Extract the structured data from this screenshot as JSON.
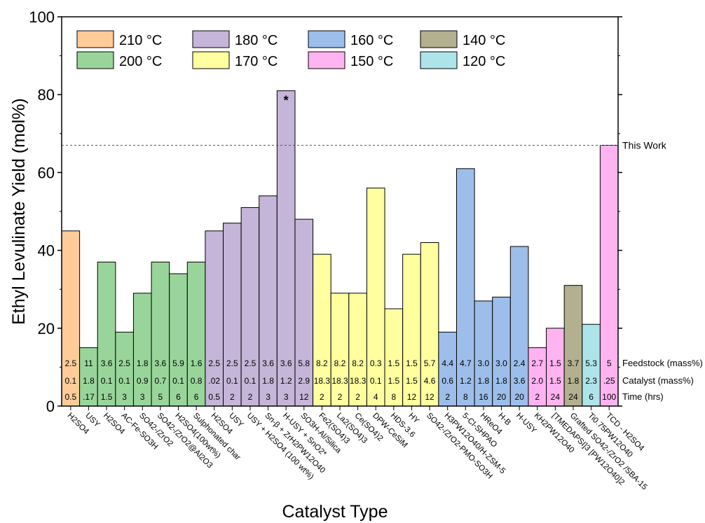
{
  "chart_data": {
    "type": "bar",
    "xlabel": "Catalyst Type",
    "ylabel": "Ethyl Levulinate Yield (mol%)",
    "ylim": [
      0,
      100
    ],
    "yticks": [
      0,
      20,
      40,
      60,
      80,
      100
    ],
    "grid": false,
    "legend_position": "top-left",
    "legend": [
      {
        "label": "210 °C",
        "color": "#FFCC99"
      },
      {
        "label": "180 °C",
        "color": "#C5B5D8"
      },
      {
        "label": "160 °C",
        "color": "#9DBEEA"
      },
      {
        "label": "140 °C",
        "color": "#B2B08E"
      },
      {
        "label": "200 °C",
        "color": "#99D59A"
      },
      {
        "label": "170 °C",
        "color": "#FFFFA0"
      },
      {
        "label": "150 °C",
        "color": "#FFB3F0"
      },
      {
        "label": "120 °C",
        "color": "#ADE4EA"
      }
    ],
    "reference_line": {
      "value": 67,
      "label": "This Work"
    },
    "row_labels": [
      "Feedstock (mass%)",
      "Catalyst (mass%)",
      "Time (hrs)"
    ],
    "annotation": {
      "text": "*",
      "bar_index": 12
    },
    "categories": [
      "H2SO4",
      "USY",
      "H2SO4",
      "AC-Fe-SO3H",
      "SO42-/ZrO2",
      "SO42-/ZrO2@Al2O3",
      "H2SO4(100wt%)",
      "Sulphonated char",
      "H2SO4",
      "USY",
      "USY + H2SO4 (100 wt%)",
      "Sn-β + ZrH2PW12O40",
      "H-USY + SnO2*",
      "SO3H-Al/Silica",
      "Fe2(SO4)3",
      "La2(SO4)3",
      "Ce(SO4)2",
      "DPW-CeSiM",
      "HDS-3.6",
      "HY",
      "SO42-/ZrO2-PMO-SO3H",
      "H3PW12O40/H-ZSM-5",
      "5-Cl-SHPAO",
      "HReO4",
      "H-B",
      "H-USY",
      "KH2PW12O40",
      "[TMEDAPSI]3 [PW12O40]2",
      "Grafted SO42-/ZrO2 /SBA-15",
      "Ti0.75PW12O40",
      "TCD - H2SO4"
    ],
    "values": [
      45,
      15,
      37,
      19,
      29,
      37,
      34,
      37,
      45,
      47,
      51,
      54,
      81,
      48,
      39,
      29,
      29,
      56,
      25,
      39,
      42,
      19,
      61,
      27,
      28,
      41,
      15,
      20,
      31,
      21,
      67
    ],
    "temperature": [
      "210 °C",
      "200 °C",
      "200 °C",
      "200 °C",
      "200 °C",
      "200 °C",
      "200 °C",
      "200 °C",
      "180 °C",
      "180 °C",
      "180 °C",
      "180 °C",
      "180 °C",
      "180 °C",
      "170 °C",
      "170 °C",
      "170 °C",
      "170 °C",
      "170 °C",
      "170 °C",
      "170 °C",
      "160 °C",
      "160 °C",
      "160 °C",
      "160 °C",
      "160 °C",
      "150 °C",
      "150 °C",
      "140 °C",
      "120 °C",
      "150 °C"
    ],
    "feedstock": [
      "2.5",
      "11",
      "3.6",
      "2.5",
      "1.8",
      "3.6",
      "5.9",
      "1.6",
      "2.5",
      "2.5",
      "2.5",
      "3.6",
      "3.6",
      "5.8",
      "8.2",
      "8.2",
      "8.2",
      "0.3",
      "1.5",
      "1.5",
      "5.7",
      "4.4",
      "4.7",
      "3.0",
      "3.0",
      "2.4",
      "2.7",
      "1.5",
      "3.7",
      "5.3",
      "5"
    ],
    "catalyst": [
      "0.1",
      "1.8",
      "0.1",
      "0.1",
      "0.9",
      "0.7",
      "0.1",
      "0.8",
      ".02",
      "0.1",
      "0.1",
      "1.8",
      "1.2",
      "2.9",
      "18.3",
      "18.3",
      "18.3",
      "0.1",
      "1.5",
      "1.5",
      "4.6",
      "0.6",
      "1.2",
      "1.8",
      "1.8",
      "3.6",
      "2.0",
      "1.5",
      "1.8",
      "2.3",
      ".25"
    ],
    "time": [
      "0.5",
      ".17",
      "1.5",
      "3",
      "3",
      "5",
      "6",
      "6",
      "0.5",
      "2",
      "2",
      "3",
      "3",
      "12",
      "2",
      "2",
      "2",
      "4",
      "8",
      "12",
      "12",
      "2",
      "8",
      "16",
      "20",
      "20",
      "2",
      "24",
      "24",
      "6",
      "100"
    ]
  }
}
